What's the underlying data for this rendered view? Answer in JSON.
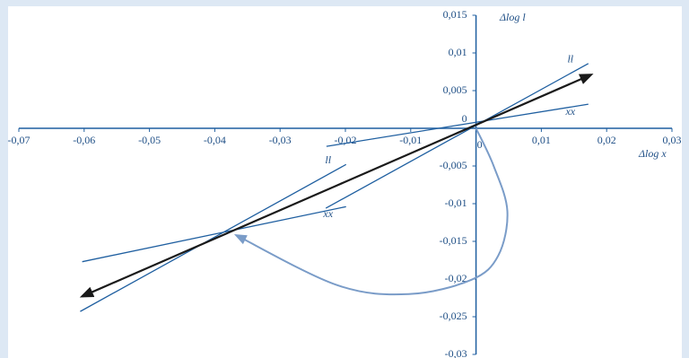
{
  "chart_data": {
    "type": "line",
    "xlabel": "Δlog x",
    "ylabel": "Δlog l",
    "xlim": [
      -0.07,
      0.03
    ],
    "ylim": [
      -0.03,
      0.015
    ],
    "xticks": [
      {
        "value": -0.07,
        "label": "-0,07"
      },
      {
        "value": -0.06,
        "label": "-0,06"
      },
      {
        "value": -0.05,
        "label": "-0,05"
      },
      {
        "value": -0.04,
        "label": "-0,04"
      },
      {
        "value": -0.03,
        "label": "-0,03"
      },
      {
        "value": -0.02,
        "label": "-0,02"
      },
      {
        "value": -0.01,
        "label": "-0,01"
      },
      0,
      {
        "value": 0.01,
        "label": "0,01"
      },
      {
        "value": 0.02,
        "label": "0,02"
      },
      {
        "value": 0.03,
        "label": "0,03"
      }
    ],
    "yticks": [
      {
        "value": 0.015,
        "label": "0,015"
      },
      {
        "value": 0.01,
        "label": "0,01"
      },
      {
        "value": 0.005,
        "label": "0,005"
      },
      0,
      {
        "value": -0.005,
        "label": "-0,005"
      },
      {
        "value": -0.01,
        "label": "-0,01"
      },
      {
        "value": -0.015,
        "label": "-0,015"
      },
      {
        "value": -0.02,
        "label": "-0,02"
      },
      {
        "value": -0.025,
        "label": "-0,025"
      },
      {
        "value": -0.03,
        "label": "-0,03"
      }
    ],
    "series": [
      {
        "name": "ll",
        "color": "#1f5fa0",
        "x": [
          -0.023,
          0.0172
        ],
        "values": [
          -0.0106,
          0.0086
        ]
      },
      {
        "name": "xx",
        "color": "#1f5fa0",
        "x": [
          -0.0229,
          0.0172
        ],
        "values": [
          -0.0024,
          0.0032
        ]
      },
      {
        "name": "ll",
        "color": "#1f5fa0",
        "x": [
          -0.0606,
          -0.0199
        ],
        "values": [
          -0.0243,
          -0.0048
        ]
      },
      {
        "name": "xx",
        "color": "#1f5fa0",
        "x": [
          -0.0603,
          -0.0199
        ],
        "values": [
          -0.0177,
          -0.0104
        ]
      },
      {
        "color": "#1a1a1a",
        "x": [
          -0.0603,
          0.0176
        ],
        "values": [
          -0.0223,
          0.0071
        ]
      },
      {
        "color": "#7a9cc8",
        "x": [
          0,
          0.0027,
          0.0048,
          0.0034,
          -0.0007,
          -0.0103,
          -0.0213,
          -0.0367
        ],
        "values": [
          0,
          -0.005,
          -0.011,
          -0.0169,
          -0.0201,
          -0.022,
          -0.0208,
          -0.0142
        ]
      }
    ]
  }
}
